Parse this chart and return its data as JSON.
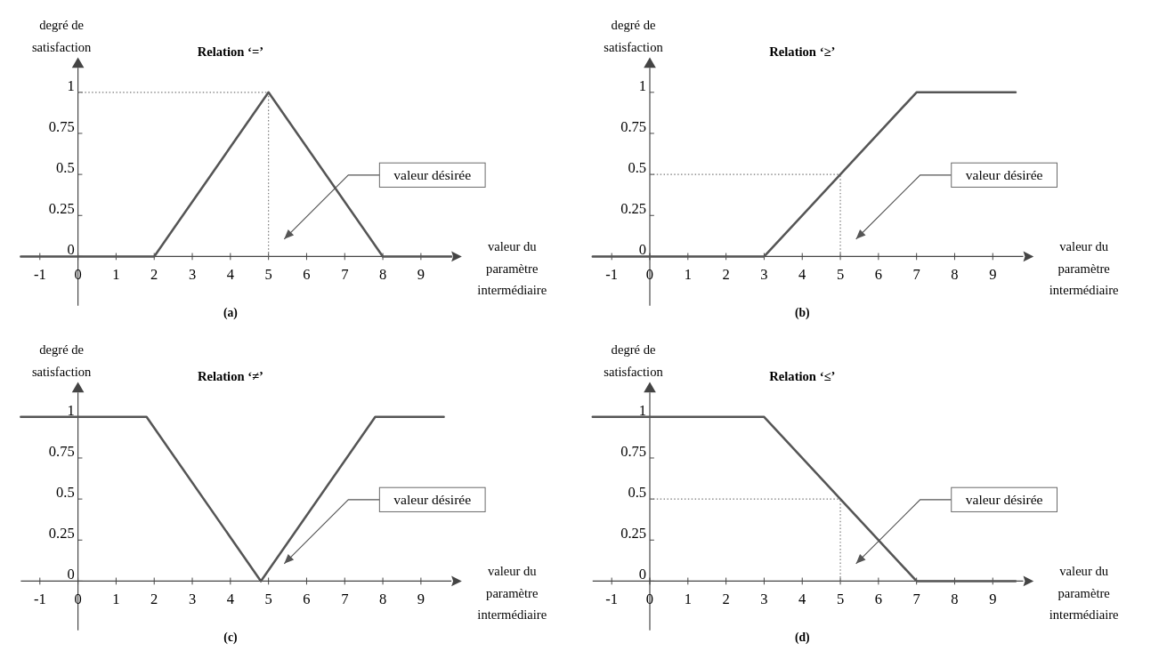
{
  "chart_data": [
    {
      "type": "line",
      "title": "Relation ‘=’",
      "xlabel": "valeur du paramètre intermédiaire",
      "ylabel": "degré de satisfaction",
      "xlim": [
        -1.5,
        9.8
      ],
      "ylim": [
        -0.3,
        1.15
      ],
      "xticks": [
        -1,
        0,
        1,
        2,
        3,
        4,
        5,
        6,
        7,
        8,
        9
      ],
      "yticks": [
        0,
        0.25,
        0.5,
        0.75,
        1
      ],
      "grid": false,
      "series": [
        {
          "color": "#555555",
          "x": [
            -1.5,
            2,
            5,
            8,
            9.8
          ],
          "values": [
            0,
            0,
            1,
            0,
            0
          ]
        }
      ],
      "ref_lines": [
        {
          "axis": "y",
          "value": 1,
          "color": "#777777",
          "line_style": "dotted"
        },
        {
          "axis": "x",
          "value": 5,
          "color": "#777777",
          "line_style": "dotted"
        }
      ],
      "annotations": [
        "valeur désirée",
        "(a)"
      ]
    },
    {
      "type": "line",
      "title": "Relation ‘≥’",
      "xlabel": "valeur du paramètre intermédiaire",
      "ylabel": "degré de satisfaction",
      "xlim": [
        -1.5,
        9.8
      ],
      "ylim": [
        -0.3,
        1.15
      ],
      "xticks": [
        -1,
        0,
        1,
        2,
        3,
        4,
        5,
        6,
        7,
        8,
        9
      ],
      "yticks": [
        0,
        0.25,
        0.5,
        0.75,
        1
      ],
      "grid": false,
      "series": [
        {
          "color": "#555555",
          "x": [
            -1.5,
            3,
            7,
            9.6
          ],
          "values": [
            0,
            0,
            1,
            1
          ]
        }
      ],
      "ref_lines": [
        {
          "axis": "y",
          "value": 0.5,
          "color": "#777777",
          "line_style": "dotted"
        },
        {
          "axis": "x",
          "value": 5,
          "color": "#777777",
          "line_style": "dotted"
        }
      ],
      "annotations": [
        "valeur désirée",
        "(b)"
      ]
    },
    {
      "type": "line",
      "title": "Relation ‘≠’",
      "xlabel": "valeur du paramètre intermédiaire",
      "ylabel": "degré de satisfaction",
      "xlim": [
        -1.5,
        9.8
      ],
      "ylim": [
        -0.3,
        1.15
      ],
      "xticks": [
        -1,
        0,
        1,
        2,
        3,
        4,
        5,
        6,
        7,
        8,
        9
      ],
      "yticks": [
        0,
        0.25,
        0.5,
        0.75,
        1
      ],
      "grid": false,
      "series": [
        {
          "color": "#555555",
          "x": [
            -1.5,
            1.8,
            4.8,
            7.8,
            9.6
          ],
          "values": [
            1,
            1,
            0,
            1,
            1
          ]
        }
      ],
      "annotations": [
        "valeur désirée",
        "(c)"
      ]
    },
    {
      "type": "line",
      "title": "Relation ‘≤’",
      "xlabel": "valeur du paramètre intermédiaire",
      "ylabel": "degré de satisfaction",
      "xlim": [
        -1.5,
        9.8
      ],
      "ylim": [
        -0.3,
        1.15
      ],
      "xticks": [
        -1,
        0,
        1,
        2,
        3,
        4,
        5,
        6,
        7,
        8,
        9
      ],
      "yticks": [
        0,
        0.25,
        0.5,
        0.75,
        1
      ],
      "grid": false,
      "series": [
        {
          "color": "#555555",
          "x": [
            -1.5,
            3,
            7,
            9.6
          ],
          "values": [
            1,
            1,
            0,
            0
          ]
        }
      ],
      "ref_lines": [
        {
          "axis": "y",
          "value": 0.5,
          "color": "#777777",
          "line_style": "dotted"
        },
        {
          "axis": "x",
          "value": 5,
          "color": "#777777",
          "line_style": "dotted"
        }
      ],
      "annotations": [
        "valeur désirée",
        "(d)"
      ]
    }
  ]
}
